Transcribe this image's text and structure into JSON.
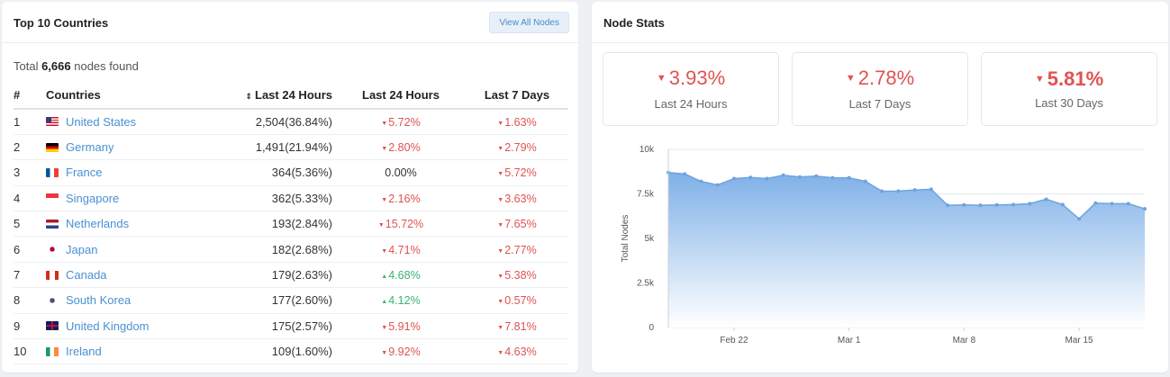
{
  "left": {
    "title": "Top 10 Countries",
    "view_all_label": "View All Nodes",
    "total_prefix": "Total ",
    "total_count": "6,666",
    "total_suffix": " nodes found",
    "columns": {
      "rank": "#",
      "country": "Countries",
      "last24_count": "Last 24 Hours",
      "last24_change": "Last 24 Hours",
      "last7": "Last 7 Days"
    },
    "rows": [
      {
        "rank": "1",
        "flag": "us",
        "country": "United States",
        "count": "2,504(36.84%)",
        "d24": "5.72%",
        "d24_dir": "down",
        "d7": "1.63%",
        "d7_dir": "down"
      },
      {
        "rank": "2",
        "flag": "de",
        "country": "Germany",
        "count": "1,491(21.94%)",
        "d24": "2.80%",
        "d24_dir": "down",
        "d7": "2.79%",
        "d7_dir": "down"
      },
      {
        "rank": "3",
        "flag": "fr",
        "country": "France",
        "count": "364(5.36%)",
        "d24": "0.00%",
        "d24_dir": "none",
        "d7": "5.72%",
        "d7_dir": "down"
      },
      {
        "rank": "4",
        "flag": "sg",
        "country": "Singapore",
        "count": "362(5.33%)",
        "d24": "2.16%",
        "d24_dir": "down",
        "d7": "3.63%",
        "d7_dir": "down"
      },
      {
        "rank": "5",
        "flag": "nl",
        "country": "Netherlands",
        "count": "193(2.84%)",
        "d24": "15.72%",
        "d24_dir": "down",
        "d7": "7.65%",
        "d7_dir": "down"
      },
      {
        "rank": "6",
        "flag": "jp",
        "country": "Japan",
        "count": "182(2.68%)",
        "d24": "4.71%",
        "d24_dir": "down",
        "d7": "2.77%",
        "d7_dir": "down"
      },
      {
        "rank": "7",
        "flag": "ca",
        "country": "Canada",
        "count": "179(2.63%)",
        "d24": "4.68%",
        "d24_dir": "up",
        "d7": "5.38%",
        "d7_dir": "down"
      },
      {
        "rank": "8",
        "flag": "kr",
        "country": "South Korea",
        "count": "177(2.60%)",
        "d24": "4.12%",
        "d24_dir": "up",
        "d7": "0.57%",
        "d7_dir": "down"
      },
      {
        "rank": "9",
        "flag": "gb",
        "country": "United Kingdom",
        "count": "175(2.57%)",
        "d24": "5.91%",
        "d24_dir": "down",
        "d7": "7.81%",
        "d7_dir": "down"
      },
      {
        "rank": "10",
        "flag": "ie",
        "country": "Ireland",
        "count": "109(1.60%)",
        "d24": "9.92%",
        "d24_dir": "down",
        "d7": "4.63%",
        "d7_dir": "down"
      }
    ]
  },
  "right": {
    "title": "Node Stats",
    "stats": [
      {
        "value": "3.93%",
        "label": "Last 24 Hours",
        "dir": "down"
      },
      {
        "value": "2.78%",
        "label": "Last 7 Days",
        "dir": "down"
      },
      {
        "value": "5.81%",
        "label": "Last 30 Days",
        "dir": "down"
      }
    ]
  },
  "colors": {
    "down": "#e05252",
    "up": "#3cb371",
    "link": "#4a90d2",
    "area_top": "#7fb0e8",
    "area_bottom": "#ffffff",
    "line": "#6fa3e0"
  },
  "chart_data": {
    "type": "area",
    "title": "",
    "xlabel": "",
    "ylabel": "Total Nodes",
    "ylim": [
      0,
      10000
    ],
    "yticks": [
      0,
      2500,
      5000,
      7500,
      10000
    ],
    "ytick_labels": [
      "0",
      "2.5k",
      "5k",
      "7.5k",
      "10k"
    ],
    "xtick_labels": [
      "Feb 22",
      "Mar 1",
      "Mar 8",
      "Mar 15"
    ],
    "xtick_index": [
      4,
      11,
      18,
      25
    ],
    "grid": true,
    "series": [
      {
        "values": [
          8700,
          8620,
          8200,
          8000,
          8360,
          8420,
          8360,
          8550,
          8450,
          8500,
          8400,
          8400,
          8200,
          7650,
          7660,
          7720,
          7760,
          6860,
          6880,
          6860,
          6880,
          6900,
          6950,
          7200,
          6900,
          6100,
          6980,
          6950,
          6950,
          6660
        ]
      }
    ]
  }
}
